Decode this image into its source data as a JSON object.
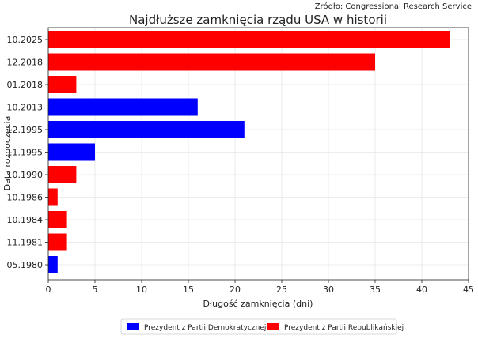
{
  "source": "Źródło: Congressional Research Service",
  "chart_data": {
    "type": "bar",
    "orientation": "horizontal",
    "title": "Najdłuższe zamknięcia rządu USA w historii",
    "xlabel": "Długość zamknięcia (dni)",
    "ylabel": "Data rozpoczęcia",
    "xlim": [
      0,
      45
    ],
    "xticks": [
      "0",
      "5",
      "10",
      "15",
      "20",
      "25",
      "30",
      "35",
      "40",
      "45"
    ],
    "grid": true,
    "legend_position": "bottom-center",
    "categories": [
      "10.2025",
      "12.2018",
      "01.2018",
      "10.2013",
      "12.1995",
      "11.1995",
      "10.1990",
      "10.1986",
      "10.1984",
      "11.1981",
      "05.1980"
    ],
    "values": [
      43,
      35,
      3,
      16,
      21,
      5,
      3,
      1,
      2,
      2,
      1
    ],
    "party": [
      "R",
      "R",
      "R",
      "D",
      "D",
      "D",
      "R",
      "R",
      "R",
      "R",
      "D"
    ],
    "legend": [
      {
        "key": "D",
        "label": "Prezydent z Partii Demokratycznej",
        "color": "#0000ff"
      },
      {
        "key": "R",
        "label": "Prezydent z Partii Republikańskiej",
        "color": "#ff0000"
      }
    ]
  }
}
